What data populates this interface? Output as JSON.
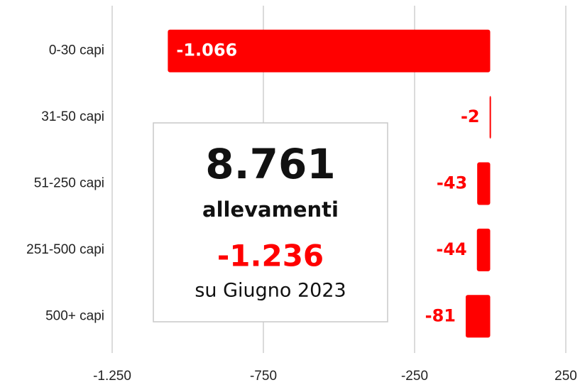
{
  "chart_data": {
    "type": "bar",
    "orientation": "horizontal",
    "categories": [
      "0-30 capi",
      "31-50 capi",
      "51-250 capi",
      "251-500 capi",
      "500+ capi"
    ],
    "values": [
      -1066,
      -2,
      -43,
      -44,
      -81
    ],
    "value_labels": [
      "-1.066",
      "-2",
      "-43",
      "-44",
      "-81"
    ],
    "color": "#ff0000",
    "xlim": [
      -1250,
      250
    ],
    "xticks": [
      {
        "value": -1250,
        "label": "-1.250"
      },
      {
        "value": -750,
        "label": "-750"
      },
      {
        "value": -250,
        "label": "-250"
      },
      {
        "value": 250,
        "label": "250"
      }
    ],
    "grid": true,
    "annotation": {
      "total": "8.761",
      "unit": "allevamenti",
      "change": "-1.236",
      "note": "su Giugno 2023"
    }
  }
}
